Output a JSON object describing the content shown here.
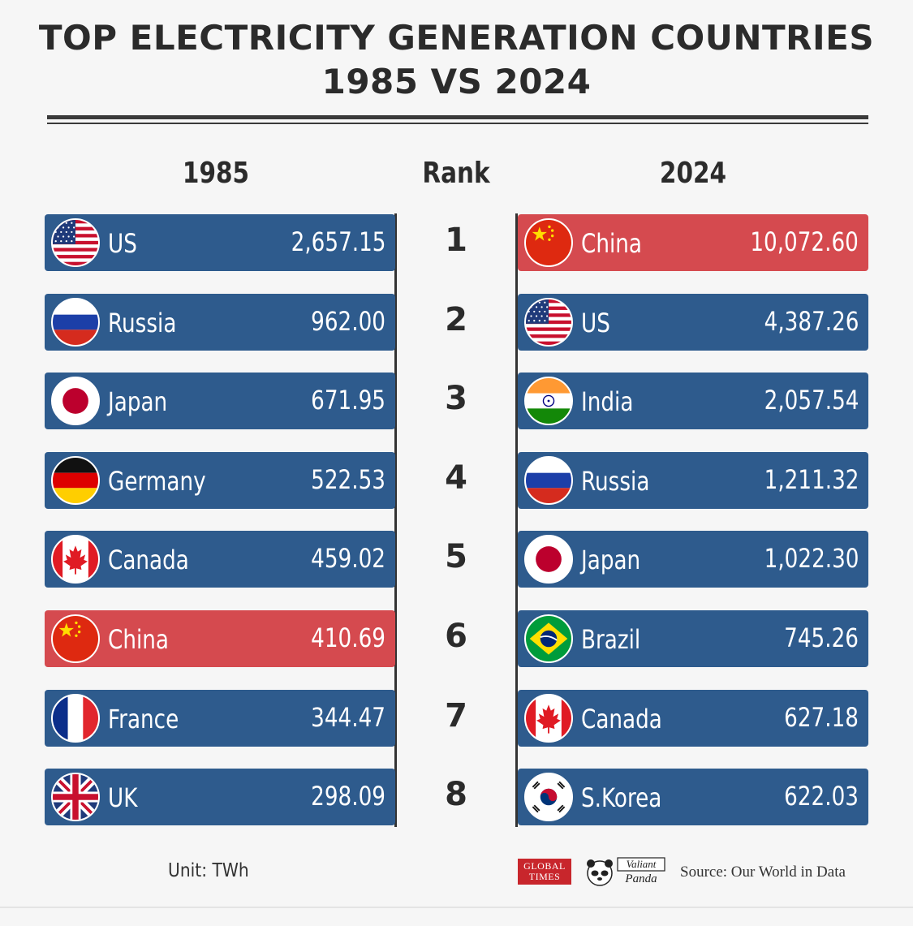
{
  "title_line1": "TOP ELECTRICITY GENERATION COUNTRIES",
  "title_line2": "1985 VS 2024",
  "headers": {
    "left": "1985",
    "center": "Rank",
    "right": "2024"
  },
  "footer": {
    "unit": "Unit: TWh",
    "logo_gt": "GLOBAL TIMES",
    "logo_panda": "Valiant Panda",
    "source": "Source: Our World in Data"
  },
  "colors": {
    "bar": "#2e5b8d",
    "highlight": "#d54a4f",
    "text": "#2b2b2b"
  },
  "chart_data": {
    "type": "table",
    "title": "TOP ELECTRICITY GENERATION COUNTRIES 1985 VS 2024",
    "unit": "TWh",
    "ranks": [
      "1",
      "2",
      "3",
      "4",
      "5",
      "6",
      "7",
      "8"
    ],
    "y1985": [
      {
        "country": "US",
        "value": "2,657.15",
        "flag": "us-flag-icon",
        "highlight": false
      },
      {
        "country": "Russia",
        "value": "962.00",
        "flag": "russia-flag-icon",
        "highlight": false
      },
      {
        "country": "Japan",
        "value": "671.95",
        "flag": "japan-flag-icon",
        "highlight": false
      },
      {
        "country": "Germany",
        "value": "522.53",
        "flag": "germany-flag-icon",
        "highlight": false
      },
      {
        "country": "Canada",
        "value": "459.02",
        "flag": "canada-flag-icon",
        "highlight": false
      },
      {
        "country": "China",
        "value": "410.69",
        "flag": "china-flag-icon",
        "highlight": true
      },
      {
        "country": "France",
        "value": "344.47",
        "flag": "france-flag-icon",
        "highlight": false
      },
      {
        "country": "UK",
        "value": "298.09",
        "flag": "uk-flag-icon",
        "highlight": false
      }
    ],
    "y2024": [
      {
        "country": "China",
        "value": "10,072.60",
        "flag": "china-flag-icon",
        "highlight": true
      },
      {
        "country": "US",
        "value": "4,387.26",
        "flag": "us-flag-icon",
        "highlight": false
      },
      {
        "country": "India",
        "value": "2,057.54",
        "flag": "india-flag-icon",
        "highlight": false
      },
      {
        "country": "Russia",
        "value": "1,211.32",
        "flag": "russia-flag-icon",
        "highlight": false
      },
      {
        "country": "Japan",
        "value": "1,022.30",
        "flag": "japan-flag-icon",
        "highlight": false
      },
      {
        "country": "Brazil",
        "value": "745.26",
        "flag": "brazil-flag-icon",
        "highlight": false
      },
      {
        "country": "Canada",
        "value": "627.18",
        "flag": "canada-flag-icon",
        "highlight": false
      },
      {
        "country": "S.Korea",
        "value": "622.03",
        "flag": "south-korea-flag-icon",
        "highlight": false
      }
    ]
  }
}
